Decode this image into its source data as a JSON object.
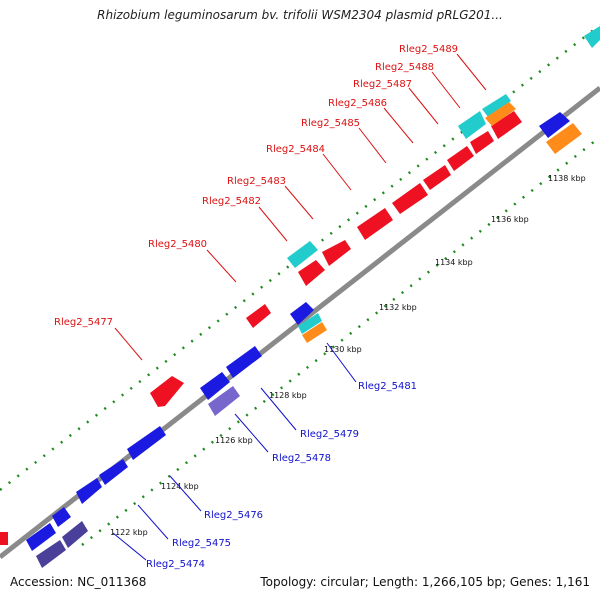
{
  "title": "Rhizobium leguminosarum bv. trifolii WSM2304 plasmid pRLG201...",
  "footer": {
    "accession": "Accession: NC_011368",
    "stats": "Topology: circular; Length: 1,266,105 bp; Genes: 1,161"
  },
  "colors": {
    "backbone": "#8a8a8a",
    "dots": "#1f8a1f",
    "label_forward": "#dd1111",
    "label_reverse": "#1111cc",
    "gene_red": "#ee1122",
    "gene_blue": "#1a1ae0",
    "gene_cyan": "#22cccc",
    "gene_orange": "#ff8c1a",
    "gene_slate_blue": "#7766cc",
    "gene_dark_slate": "#4a3f99"
  },
  "tick_labels": [
    "1122 kbp",
    "1124 kbp",
    "1126 kbp",
    "1128 kbp",
    "1130 kbp",
    "1132 kbp",
    "1134 kbp",
    "1136 kbp",
    "1138 kbp"
  ],
  "forward_labels": [
    "Rleg2_5477",
    "Rleg2_5480",
    "Rleg2_5482",
    "Rleg2_5483",
    "Rleg2_5484",
    "Rleg2_5485",
    "Rleg2_5486",
    "Rleg2_5487",
    "Rleg2_5488",
    "Rleg2_5489"
  ],
  "reverse_labels": [
    "Rleg2_5474",
    "Rleg2_5475",
    "Rleg2_5476",
    "Rleg2_5478",
    "Rleg2_5479",
    "Rleg2_5481"
  ]
}
